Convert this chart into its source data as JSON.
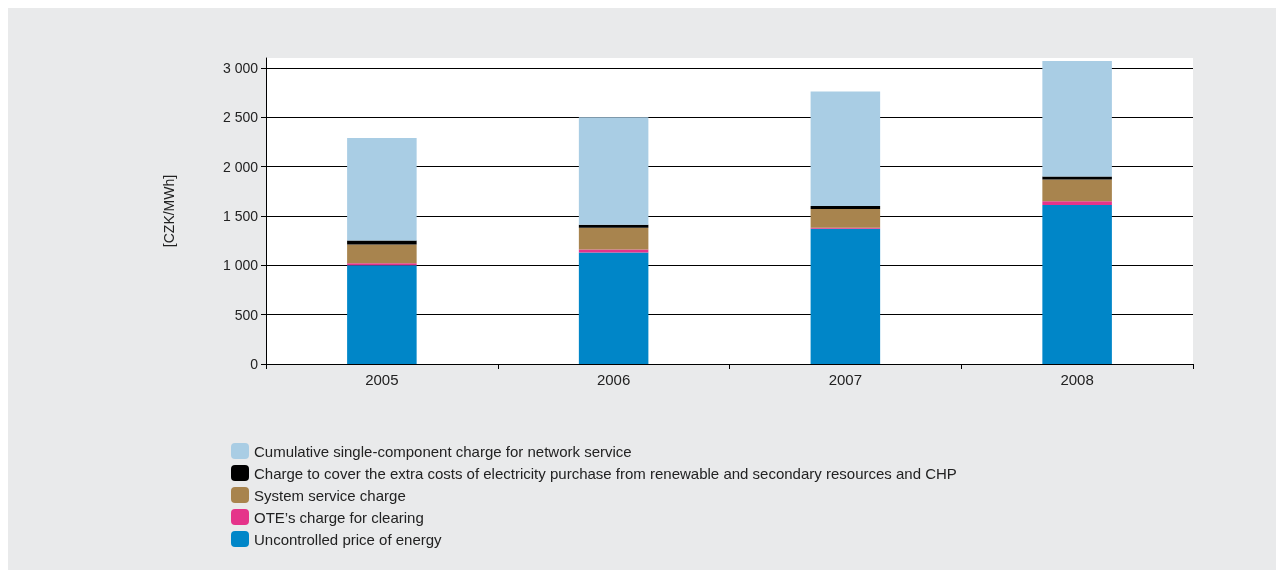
{
  "chart_data": {
    "type": "bar",
    "stacked": true,
    "ylabel": "[CZK/MWh]",
    "categories": [
      "2005",
      "2006",
      "2007",
      "2008"
    ],
    "series": [
      {
        "name": "Uncontrolled price of energy",
        "color": "#0086c8",
        "values": [
          1000,
          1130,
          1370,
          1610
        ]
      },
      {
        "name": "OTE’s charge for clearing",
        "color": "#e5338a",
        "values": [
          20,
          30,
          10,
          40
        ]
      },
      {
        "name": "System service charge",
        "color": "#a8844e",
        "values": [
          190,
          220,
          190,
          220
        ]
      },
      {
        "name": "Charge to cover the extra costs of electricity purchase from renewable and secondary resources and CHP",
        "color": "#000000",
        "values": [
          40,
          30,
          30,
          30
        ]
      },
      {
        "name": "Cumulative single-component charge for network service",
        "color": "#a9cde4",
        "values": [
          1040,
          1090,
          1160,
          1170
        ]
      }
    ],
    "ylim": [
      0,
      3100
    ],
    "yticks": [
      {
        "value": 0,
        "label": "0"
      },
      {
        "value": 500,
        "label": "500"
      },
      {
        "value": 1000,
        "label": "1 000"
      },
      {
        "value": 1500,
        "label": "1 500"
      },
      {
        "value": 2000,
        "label": "2 000"
      },
      {
        "value": 2500,
        "label": "2 500"
      },
      {
        "value": 3000,
        "label": "3 000"
      }
    ],
    "grid": "y",
    "legend": "bottom left"
  }
}
